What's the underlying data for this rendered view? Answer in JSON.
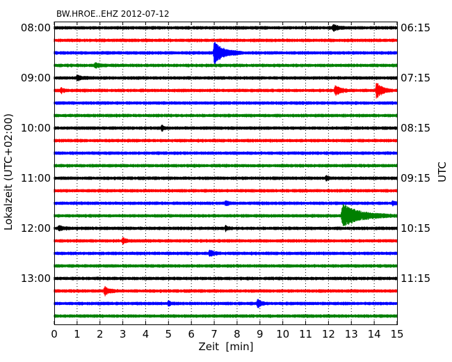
{
  "chart_data": {
    "type": "line",
    "title": "BW.HROE..EHZ 2012-07-12",
    "xlabel": "Zeit  [min]",
    "ylabel_left": "Lokalzeit (UTC+02:00)",
    "ylabel_right": "UTC",
    "xlim": [
      0,
      15
    ],
    "x_ticks": [
      "0",
      "1",
      "2",
      "3",
      "4",
      "5",
      "6",
      "7",
      "8",
      "9",
      "10",
      "11",
      "12",
      "13",
      "14",
      "15"
    ],
    "left_ticks": [
      "08:00",
      "09:00",
      "10:00",
      "11:00",
      "12:00",
      "13:00"
    ],
    "right_ticks": [
      "06:15",
      "07:15",
      "08:15",
      "09:15",
      "10:15",
      "11:15"
    ],
    "traces_count": 24,
    "traces_per_hour": 4,
    "trace_colors": [
      "#000000",
      "#ff0000",
      "#0000ff",
      "#008000"
    ],
    "grid": "vertical dotted at each minute",
    "events": [
      {
        "trace": 0,
        "minute": 12.2,
        "amp": 0.25,
        "dur": 0.6
      },
      {
        "trace": 2,
        "minute": 7.0,
        "amp": 1.0,
        "dur": 1.2
      },
      {
        "trace": 3,
        "minute": 1.8,
        "amp": 0.2,
        "dur": 0.5
      },
      {
        "trace": 4,
        "minute": 1.0,
        "amp": 0.2,
        "dur": 0.6
      },
      {
        "trace": 5,
        "minute": 12.3,
        "amp": 0.45,
        "dur": 0.6
      },
      {
        "trace": 5,
        "minute": 14.1,
        "amp": 0.75,
        "dur": 0.7
      },
      {
        "trace": 5,
        "minute": 0.3,
        "amp": 0.2,
        "dur": 0.3
      },
      {
        "trace": 8,
        "minute": 4.7,
        "amp": 0.2,
        "dur": 0.3
      },
      {
        "trace": 12,
        "minute": 11.9,
        "amp": 0.2,
        "dur": 0.3
      },
      {
        "trace": 14,
        "minute": 7.5,
        "amp": 0.2,
        "dur": 0.3
      },
      {
        "trace": 14,
        "minute": 14.8,
        "amp": 0.2,
        "dur": 0.3
      },
      {
        "trace": 15,
        "minute": 12.6,
        "amp": 1.0,
        "dur": 2.2
      },
      {
        "trace": 16,
        "minute": 0.2,
        "amp": 0.2,
        "dur": 0.6
      },
      {
        "trace": 16,
        "minute": 7.5,
        "amp": 0.2,
        "dur": 0.3
      },
      {
        "trace": 17,
        "minute": 3.0,
        "amp": 0.25,
        "dur": 0.4
      },
      {
        "trace": 18,
        "minute": 6.8,
        "amp": 0.3,
        "dur": 0.5
      },
      {
        "trace": 21,
        "minute": 2.2,
        "amp": 0.35,
        "dur": 0.6
      },
      {
        "trace": 22,
        "minute": 8.9,
        "amp": 0.4,
        "dur": 0.4
      },
      {
        "trace": 22,
        "minute": 5.0,
        "amp": 0.2,
        "dur": 0.3
      }
    ]
  }
}
